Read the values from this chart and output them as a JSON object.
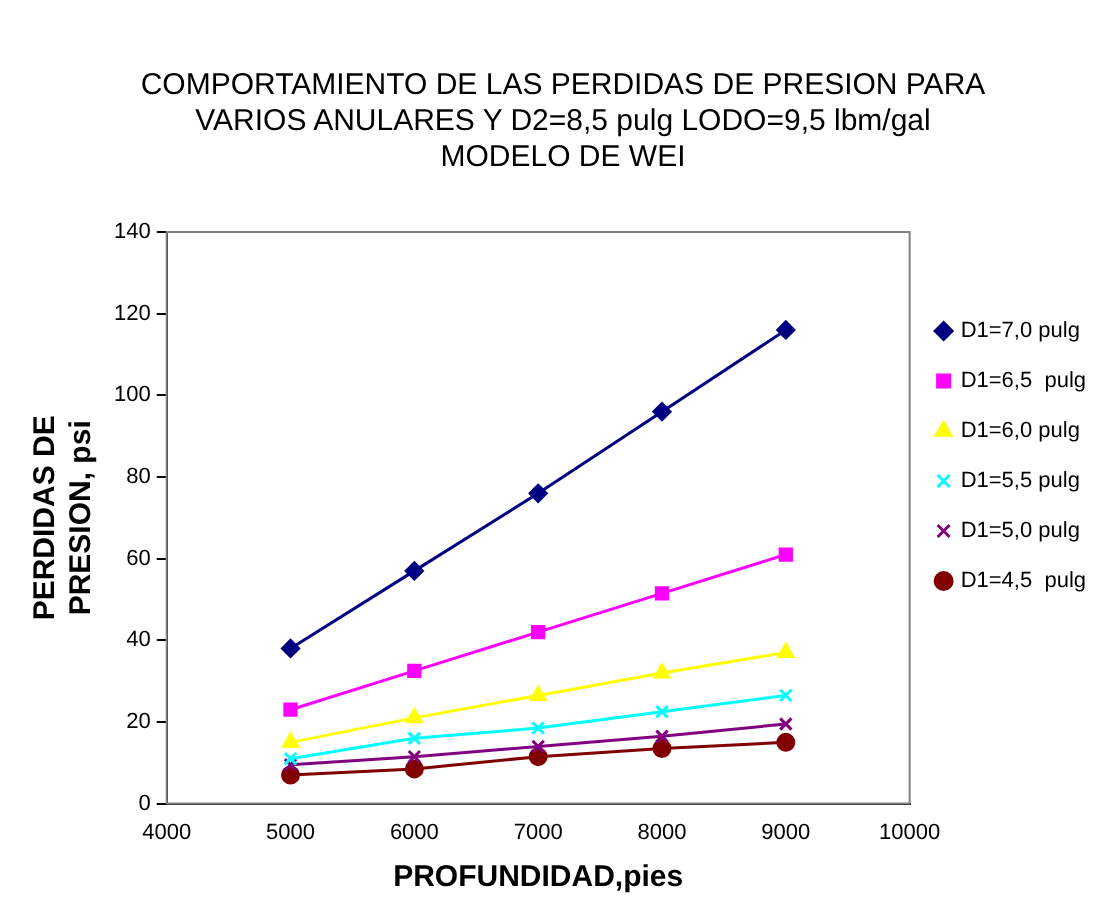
{
  "chart_data": {
    "type": "line",
    "title": "COMPORTAMIENTO DE LAS PERDIDAS DE PRESION PARA\nVARIOS ANULARES Y D2=8,5 pulg LODO=9,5 lbm/gal\nMODELO DE WEI",
    "xlabel": "PROFUNDIDAD,pies",
    "ylabel": "PERDIDAS DE\nPRESION, psi",
    "x": [
      5000,
      6000,
      7000,
      8000,
      9000
    ],
    "series": [
      {
        "name": "D1=7,0 pulg",
        "color": "#000080",
        "marker": "diamond",
        "values": [
          38,
          57,
          76,
          96,
          116
        ]
      },
      {
        "name": "D1=6,5  pulg",
        "color": "#ff00ff",
        "marker": "square",
        "values": [
          23,
          32.5,
          42,
          51.5,
          61
        ]
      },
      {
        "name": "D1=6,0 pulg",
        "color": "#ffff00",
        "marker": "triangle",
        "values": [
          15,
          21,
          26.5,
          32,
          37
        ]
      },
      {
        "name": "D1=5,5 pulg",
        "color": "#00ffff",
        "marker": "cross",
        "values": [
          11,
          16,
          18.5,
          22.5,
          26.5
        ]
      },
      {
        "name": "D1=5,0 pulg",
        "color": "#800080",
        "marker": "cross",
        "values": [
          9.5,
          11.5,
          14,
          16.5,
          19.5
        ]
      },
      {
        "name": "D1=4,5  pulg",
        "color": "#800000",
        "marker": "circle",
        "values": [
          7,
          8.5,
          11.5,
          13.5,
          15
        ]
      }
    ],
    "xlim": [
      4000,
      10000
    ],
    "xticks": [
      4000,
      5000,
      6000,
      7000,
      8000,
      9000,
      10000
    ],
    "ylim": [
      0,
      140
    ],
    "yticks": [
      0,
      20,
      40,
      60,
      80,
      100,
      120,
      140
    ],
    "grid": false,
    "legend": "right"
  }
}
